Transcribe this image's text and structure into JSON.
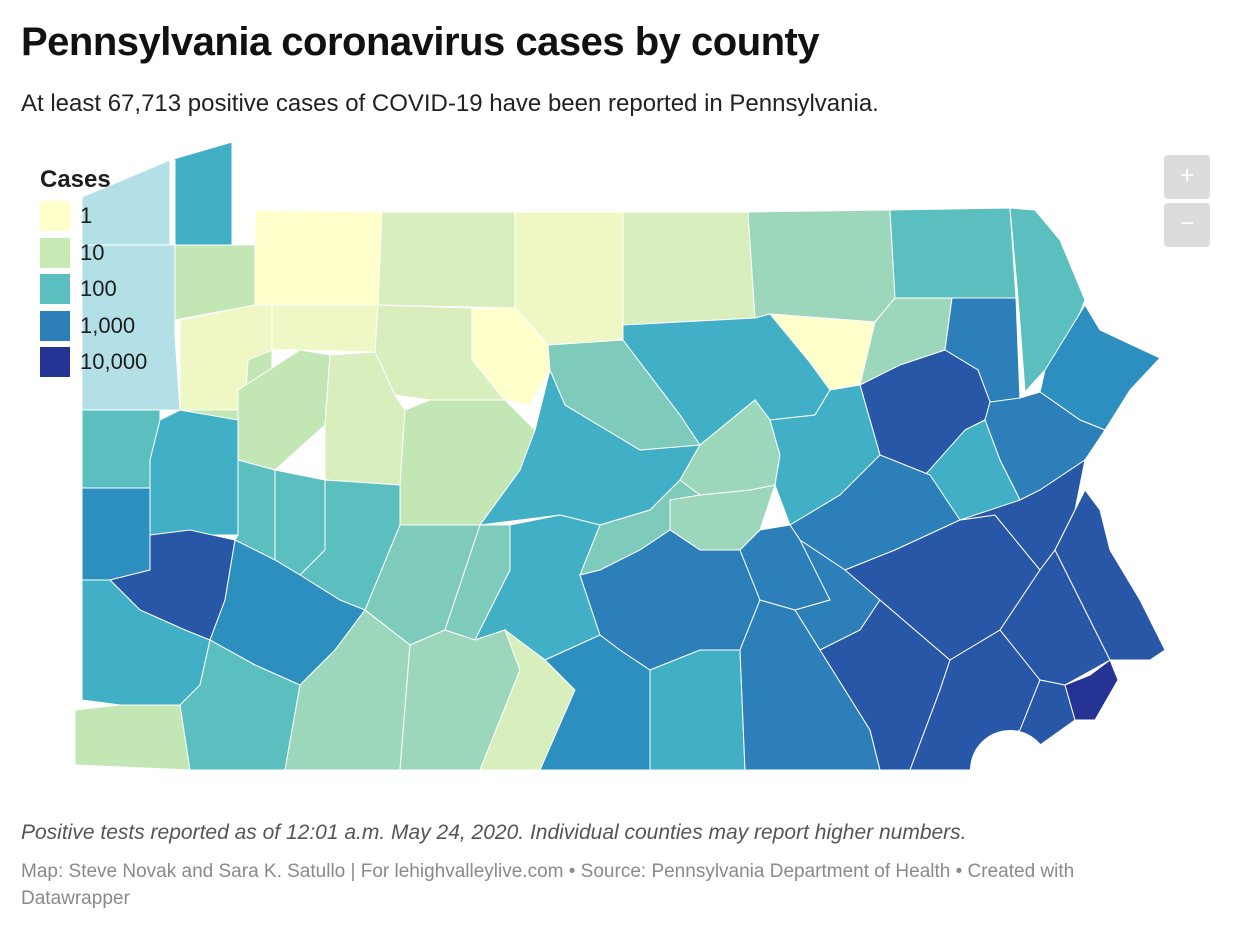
{
  "header": {
    "title": "Pennsylvania coronavirus cases by county",
    "subtitle": "At least 67,713 positive cases of COVID-19 have been reported in Pennsylvania."
  },
  "legend": {
    "title": "Cases",
    "items": [
      {
        "label": "1",
        "color": "#ffffcc"
      },
      {
        "label": "10",
        "color": "#c7e9b4"
      },
      {
        "label": "100",
        "color": "#5bbfc0"
      },
      {
        "label": "1,000",
        "color": "#2c7fb8"
      },
      {
        "label": "10,000",
        "color": "#253494"
      }
    ]
  },
  "zoom": {
    "in_label": "+",
    "out_label": "−"
  },
  "footer": {
    "note": "Positive tests reported as of 12:01 a.m. May 24, 2020. Individual counties may report higher numbers.",
    "credits": "Map: Steve Novak and Sara K. Satullo | For lehighvalleylive.com • Source: Pennsylvania Department of Health • Created with Datawrapper"
  },
  "colors": {
    "lake_erie_corner": "#b3e0e6",
    "light_yellow": "#ffffcc",
    "pale_yellow": "#eff8c4",
    "pale_green": "#d8efbd",
    "light_green": "#c2e6b4",
    "mint": "#9dd7bb",
    "seafoam": "#7ecbbb",
    "teal": "#5bbfc0",
    "cyan": "#41b0c6",
    "mid_blue": "#2c8fbf",
    "blue": "#2c7fb8",
    "dark_blue": "#2757a6",
    "navy": "#253494"
  }
}
